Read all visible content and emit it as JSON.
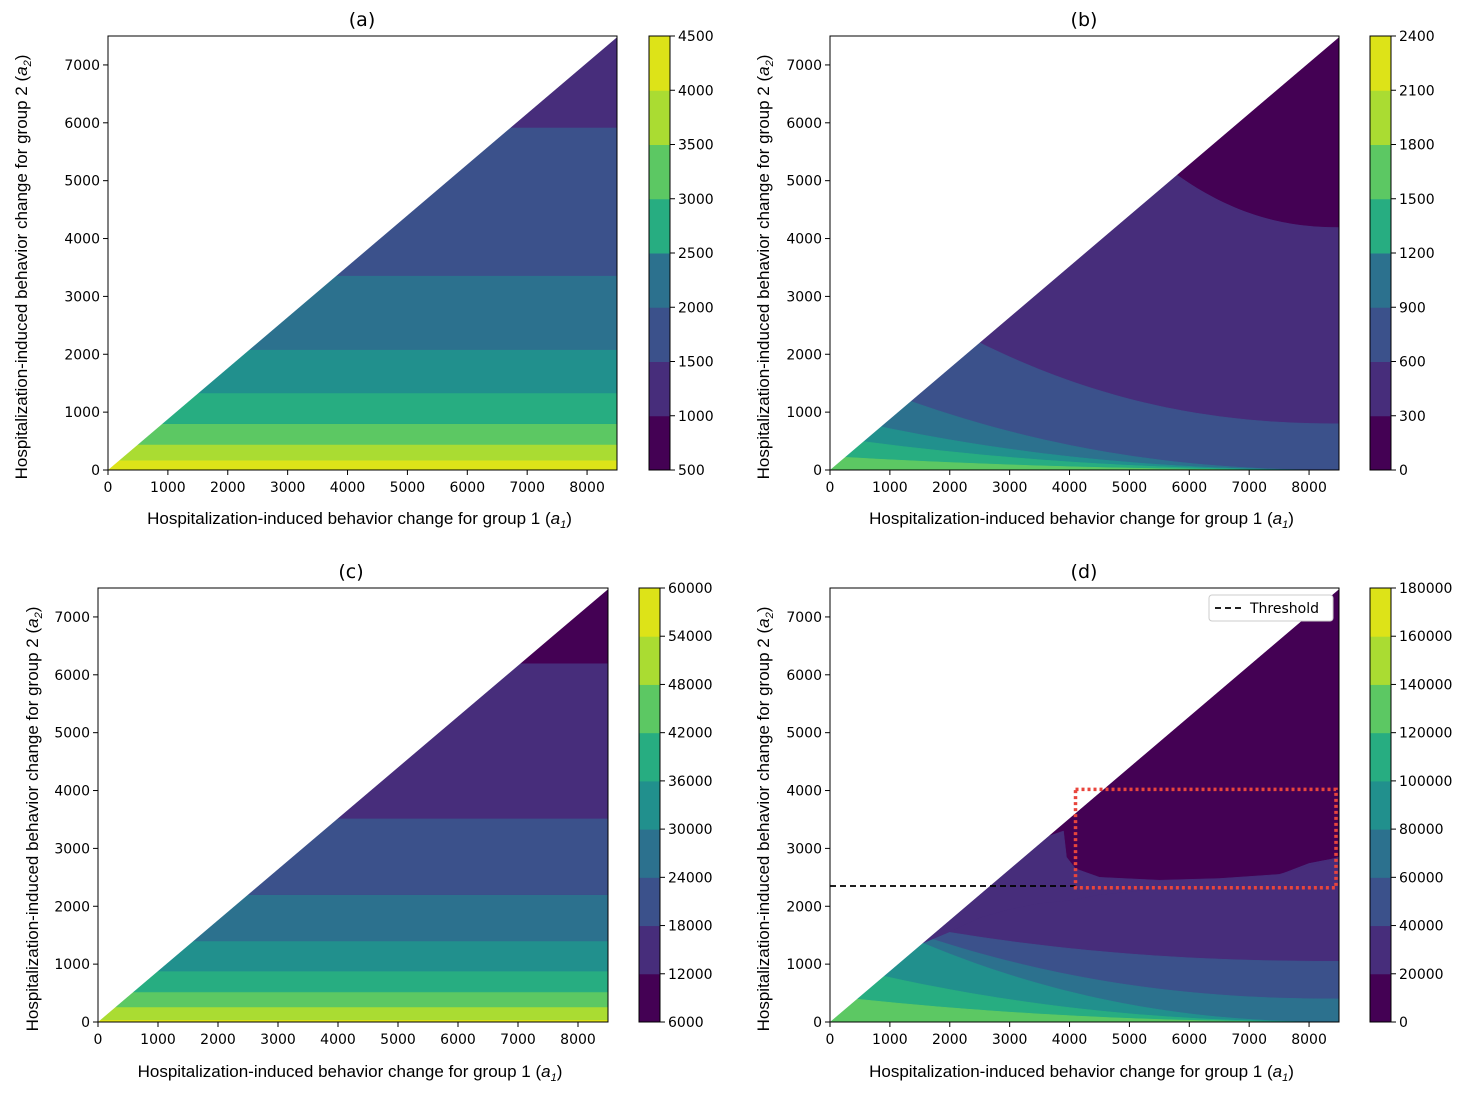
{
  "palette": [
    "#440154",
    "#472d7b",
    "#3b518b",
    "#2c718e",
    "#21908d",
    "#27ad81",
    "#5cc863",
    "#aadc32",
    "#dde318"
  ],
  "axis_labels": {
    "x_prefix": "Hospitalization-induced behavior change for group 1 (",
    "x_var": "a",
    "x_sub": "1",
    "y_prefix": "Hospitalization-induced behavior change for group 2 (",
    "y_var": "a",
    "y_sub": "2",
    "close": ")"
  },
  "chart_data": [
    {
      "id": "a",
      "type": "contour",
      "title": "(a)",
      "xlim": [
        0,
        8500
      ],
      "ylim": [
        0,
        7500
      ],
      "xticks": [
        0,
        1000,
        2000,
        3000,
        4000,
        5000,
        6000,
        7000,
        8000
      ],
      "yticks": [
        0,
        1000,
        2000,
        3000,
        4000,
        5000,
        6000,
        7000
      ],
      "region": "a2 <= 0.88 * a1",
      "colorbar": {
        "min": 500,
        "max": 4500,
        "ticks": [
          500,
          1000,
          1500,
          2000,
          2500,
          3000,
          3500,
          4000,
          4500
        ]
      },
      "bands": [
        {
          "a2_from": 0,
          "a2_to": 170,
          "level": 8
        },
        {
          "a2_from": 170,
          "a2_to": 440,
          "level": 7
        },
        {
          "a2_from": 440,
          "a2_to": 800,
          "level": 6
        },
        {
          "a2_from": 800,
          "a2_to": 1330,
          "level": 5
        },
        {
          "a2_from": 1330,
          "a2_to": 2080,
          "level": 4
        },
        {
          "a2_from": 2080,
          "a2_to": 3360,
          "level": 3
        },
        {
          "a2_from": 3360,
          "a2_to": 5920,
          "level": 2
        },
        {
          "a2_from": 5920,
          "a2_to": 7500,
          "level": 1
        }
      ]
    },
    {
      "id": "b",
      "type": "contour",
      "title": "(b)",
      "xlim": [
        0,
        8500
      ],
      "ylim": [
        0,
        7500
      ],
      "xticks": [
        0,
        1000,
        2000,
        3000,
        4000,
        5000,
        6000,
        7000,
        8000
      ],
      "yticks": [
        0,
        1000,
        2000,
        3000,
        4000,
        5000,
        6000,
        7000
      ],
      "region": "a2 <= 0.88 * a1",
      "colorbar": {
        "min": 0,
        "max": 2400,
        "ticks": [
          0,
          300,
          600,
          900,
          1200,
          1500,
          1800,
          2100,
          2400
        ]
      },
      "contours": [
        {
          "level": 7,
          "a1_at_diagonal": 0,
          "a2_at_8500": 0
        },
        {
          "level": 6,
          "a1_at_diagonal": 250,
          "a2_at_8500": 0
        },
        {
          "level": 5,
          "a1_at_diagonal": 560,
          "a2_at_8500": 0
        },
        {
          "level": 4,
          "a1_at_diagonal": 850,
          "a2_at_8500": 0
        },
        {
          "level": 3,
          "a1_at_diagonal": 1350,
          "a2_at_8500": 0
        },
        {
          "level": 2,
          "a1_at_diagonal": 2500,
          "a2_at_8500": 800
        },
        {
          "level": 1,
          "a1_at_diagonal": 5800,
          "a2_at_8500": 4200
        },
        {
          "level": 0,
          "a1_at_diagonal": 8500,
          "a2_at_8500": 7500
        }
      ]
    },
    {
      "id": "c",
      "type": "contour",
      "title": "(c)",
      "xlim": [
        0,
        8500
      ],
      "ylim": [
        0,
        7500
      ],
      "xticks": [
        0,
        1000,
        2000,
        3000,
        4000,
        5000,
        6000,
        7000,
        8000
      ],
      "yticks": [
        0,
        1000,
        2000,
        3000,
        4000,
        5000,
        6000,
        7000
      ],
      "region": "a2 <= 0.88 * a1",
      "colorbar": {
        "min": 6000,
        "max": 60000,
        "ticks": [
          6000,
          12000,
          18000,
          24000,
          30000,
          36000,
          42000,
          48000,
          54000,
          60000
        ]
      },
      "bands": [
        {
          "a2_from": 0,
          "a2_to": 40,
          "level": 8
        },
        {
          "a2_from": 40,
          "a2_to": 260,
          "level": 7
        },
        {
          "a2_from": 260,
          "a2_to": 520,
          "level": 6
        },
        {
          "a2_from": 520,
          "a2_to": 880,
          "level": 5
        },
        {
          "a2_from": 880,
          "a2_to": 1400,
          "level": 4
        },
        {
          "a2_from": 1400,
          "a2_to": 2200,
          "level": 3
        },
        {
          "a2_from": 2200,
          "a2_to": 3520,
          "level": 2
        },
        {
          "a2_from": 3520,
          "a2_to": 6200,
          "level": 1
        },
        {
          "a2_from": 6200,
          "a2_to": 7500,
          "level": 0
        }
      ]
    },
    {
      "id": "d",
      "type": "contour",
      "title": "(d)",
      "xlim": [
        0,
        8500
      ],
      "ylim": [
        0,
        7500
      ],
      "xticks": [
        0,
        1000,
        2000,
        3000,
        4000,
        5000,
        6000,
        7000,
        8000
      ],
      "yticks": [
        0,
        1000,
        2000,
        3000,
        4000,
        5000,
        6000,
        7000
      ],
      "region": "a2 <= 0.88 * a1",
      "colorbar": {
        "min": 0,
        "max": 180000,
        "ticks": [
          0,
          20000,
          40000,
          60000,
          80000,
          100000,
          120000,
          140000,
          160000,
          180000
        ]
      },
      "contours": [
        {
          "level": 7,
          "a1_at_diagonal": 0,
          "a2_at_8500": 0
        },
        {
          "level": 6,
          "a1_at_diagonal": 450,
          "a2_at_8500": 0
        },
        {
          "level": 5,
          "a1_at_diagonal": 900,
          "a2_at_8500": 0
        },
        {
          "level": 4,
          "a1_at_diagonal": 1550,
          "a2_at_8500": 0
        },
        {
          "level": 3,
          "a1_at_diagonal": 1650,
          "a2_at_8500": 400
        },
        {
          "level": 2,
          "a1_at_diagonal": 1800,
          "a2_at_8500": 1050
        }
      ],
      "dark_region": {
        "level": 0,
        "boundary_a2_low": 2300,
        "boundary_a2_high": 2900
      },
      "threshold": {
        "label": "Threshold",
        "a2": 2350,
        "a1_from": 0,
        "a1_to": 4100
      },
      "highlight_box": {
        "a1": [
          4100,
          8450
        ],
        "a2": [
          2320,
          4020
        ],
        "color": "#e8453c"
      }
    }
  ]
}
